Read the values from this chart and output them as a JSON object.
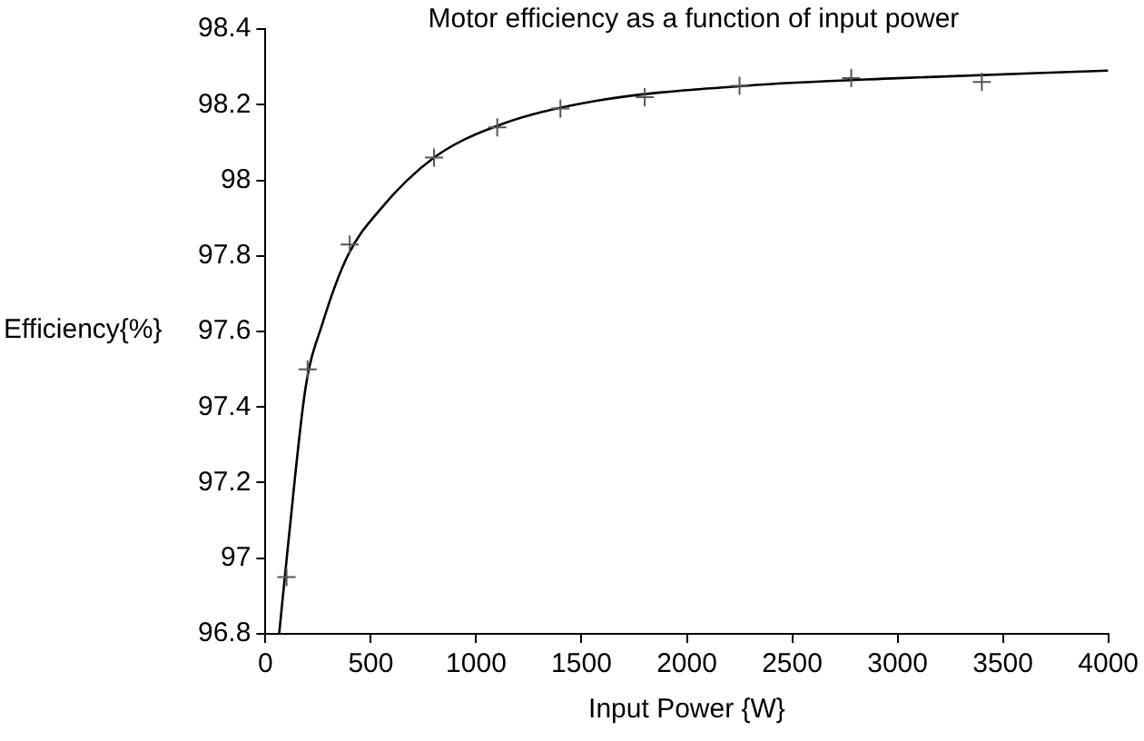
{
  "chart_data": {
    "type": "scatter",
    "title": "Motor efficiency as a function of input power",
    "xlabel": "Input Power {W}",
    "ylabel": "Efficiency{%}",
    "xlim": [
      0,
      4000
    ],
    "xticks": [
      0,
      500,
      1000,
      1500,
      2000,
      2500,
      3000,
      3500,
      4000
    ],
    "ylim": [
      96.8,
      98.4
    ],
    "yticks": [
      96.8,
      97,
      97.2,
      97.4,
      97.6,
      97.8,
      98,
      98.2,
      98.4
    ],
    "grid": false,
    "legend": false,
    "series": [
      {
        "marker": "cross",
        "color": "#555555",
        "x": [
          100,
          200,
          400,
          800,
          1100,
          1400,
          1800,
          2250,
          2780,
          3400
        ],
        "values": [
          96.95,
          97.5,
          97.83,
          98.06,
          98.14,
          98.19,
          98.22,
          98.25,
          98.27,
          98.26
        ]
      },
      {
        "type": "line",
        "marker": "none",
        "line_style": "solid",
        "color": "#000000",
        "x": [
          65,
          110,
          190,
          270,
          390,
          540,
          800,
          1130,
          1570,
          2280,
          3000,
          4000
        ],
        "values": [
          96.8,
          97.05,
          97.45,
          97.62,
          97.8,
          97.92,
          98.06,
          98.15,
          98.21,
          98.25,
          98.27,
          98.29
        ]
      }
    ]
  }
}
